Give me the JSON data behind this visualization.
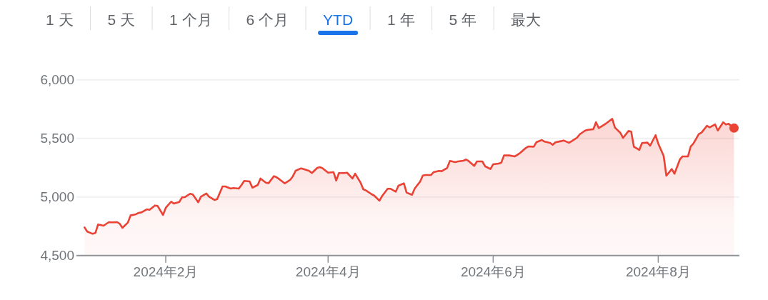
{
  "chart_data": {
    "type": "area",
    "annotations": [
      "1 天",
      "5 天",
      "1 个月",
      "6 个月",
      "YTD",
      "1 年",
      "5 年",
      "最大"
    ],
    "x": [
      "2024-01-02",
      "2024-01-03",
      "2024-01-05",
      "2024-01-06",
      "2024-01-07",
      "2024-01-09",
      "2024-01-11",
      "2024-01-12",
      "2024-01-14",
      "2024-01-15",
      "2024-01-16",
      "2024-01-18",
      "2024-01-19",
      "2024-01-21",
      "2024-01-22",
      "2024-01-23",
      "2024-01-25",
      "2024-01-26",
      "2024-01-28",
      "2024-01-29",
      "2024-01-31",
      "2024-02-01",
      "2024-02-03",
      "2024-02-04",
      "2024-02-06",
      "2024-02-07",
      "2024-02-08",
      "2024-02-10",
      "2024-02-11",
      "2024-02-13",
      "2024-02-14",
      "2024-02-16",
      "2024-02-17",
      "2024-02-19",
      "2024-02-20",
      "2024-02-22",
      "2024-02-23",
      "2024-02-25",
      "2024-02-26",
      "2024-02-28",
      "2024-02-29",
      "2024-03-01",
      "2024-03-03",
      "2024-03-04",
      "2024-03-06",
      "2024-03-07",
      "2024-03-09",
      "2024-03-10",
      "2024-03-12",
      "2024-03-13",
      "2024-03-14",
      "2024-03-16",
      "2024-03-18",
      "2024-03-19",
      "2024-03-20",
      "2024-03-22",
      "2024-03-23",
      "2024-03-25",
      "2024-03-26",
      "2024-03-28",
      "2024-03-29",
      "2024-03-30",
      "2024-04-01",
      "2024-04-03",
      "2024-04-04",
      "2024-04-05",
      "2024-04-07",
      "2024-04-08",
      "2024-04-10",
      "2024-04-11",
      "2024-04-13",
      "2024-04-14",
      "2024-04-15",
      "2024-04-17",
      "2024-04-18",
      "2024-04-20",
      "2024-04-21",
      "2024-04-23",
      "2024-04-24",
      "2024-04-26",
      "2024-04-27",
      "2024-04-29",
      "2024-04-30",
      "2024-05-02",
      "2024-05-03",
      "2024-05-05",
      "2024-05-06",
      "2024-05-07",
      "2024-05-09",
      "2024-05-10",
      "2024-05-12",
      "2024-05-13",
      "2024-05-15",
      "2024-05-16",
      "2024-05-18",
      "2024-05-19",
      "2024-05-21",
      "2024-05-22",
      "2024-05-23",
      "2024-05-25",
      "2024-05-26",
      "2024-05-28",
      "2024-05-29",
      "2024-05-31",
      "2024-06-01",
      "2024-06-03",
      "2024-06-04",
      "2024-06-05",
      "2024-06-07",
      "2024-06-09",
      "2024-06-10",
      "2024-06-11",
      "2024-06-13",
      "2024-06-14",
      "2024-06-16",
      "2024-06-17",
      "2024-06-19",
      "2024-06-20",
      "2024-06-22",
      "2024-06-23",
      "2024-06-24",
      "2024-06-26",
      "2024-06-27",
      "2024-06-29",
      "2024-06-30",
      "2024-07-02",
      "2024-07-03",
      "2024-07-05",
      "2024-07-06",
      "2024-07-08",
      "2024-07-09",
      "2024-07-10",
      "2024-07-12",
      "2024-07-13",
      "2024-07-15",
      "2024-07-16",
      "2024-07-18",
      "2024-07-19",
      "2024-07-21",
      "2024-07-22",
      "2024-07-23",
      "2024-07-25",
      "2024-07-26",
      "2024-07-28",
      "2024-07-29",
      "2024-07-31",
      "2024-08-01",
      "2024-08-03",
      "2024-08-04",
      "2024-08-06",
      "2024-08-07",
      "2024-08-09",
      "2024-08-10",
      "2024-08-12",
      "2024-08-13",
      "2024-08-14",
      "2024-08-16",
      "2024-08-17",
      "2024-08-19",
      "2024-08-20",
      "2024-08-22",
      "2024-08-23",
      "2024-08-25",
      "2024-08-26",
      "2024-08-27",
      "2024-08-29"
    ],
    "series": [
      {
        "color": "#ea4335",
        "values": [
          4740,
          4704,
          4685,
          4693,
          4765,
          4754,
          4785,
          4783,
          4785,
          4771,
          4736,
          4781,
          4842,
          4852,
          4864,
          4868,
          4894,
          4890,
          4927,
          4923,
          4846,
          4907,
          4960,
          4943,
          4957,
          4996,
          4998,
          5027,
          5021,
          4954,
          5002,
          5029,
          5002,
          4974,
          4982,
          5090,
          5090,
          5071,
          5076,
          5071,
          5102,
          5137,
          5132,
          5079,
          5102,
          5157,
          5122,
          5118,
          5177,
          5167,
          5151,
          5116,
          5146,
          5177,
          5224,
          5244,
          5238,
          5222,
          5204,
          5248,
          5254,
          5244,
          5207,
          5212,
          5140,
          5204,
          5204,
          5207,
          5157,
          5198,
          5122,
          5065,
          5055,
          5024,
          5012,
          4968,
          5009,
          5070,
          5070,
          5045,
          5096,
          5116,
          5037,
          5018,
          5071,
          5131,
          5183,
          5187,
          5187,
          5212,
          5222,
          5220,
          5248,
          5307,
          5297,
          5303,
          5309,
          5320,
          5305,
          5265,
          5303,
          5303,
          5262,
          5238,
          5279,
          5285,
          5293,
          5354,
          5354,
          5346,
          5360,
          5376,
          5417,
          5431,
          5429,
          5468,
          5486,
          5472,
          5462,
          5445,
          5466,
          5476,
          5482,
          5462,
          5476,
          5506,
          5535,
          5567,
          5573,
          5578,
          5638,
          5588,
          5616,
          5632,
          5667,
          5592,
          5547,
          5504,
          5563,
          5557,
          5429,
          5401,
          5460,
          5464,
          5437,
          5527,
          5456,
          5350,
          5181,
          5238,
          5198,
          5320,
          5346,
          5346,
          5431,
          5456,
          5537,
          5549,
          5608,
          5594,
          5620,
          5567,
          5637,
          5618,
          5624,
          5588
        ]
      },
      {
        "type": "scatter",
        "color": "#ea4335",
        "x": [
          "2024-08-29"
        ],
        "values": [
          5588
        ]
      }
    ],
    "xlim": [
      "2023-12-30",
      "2024-08-31"
    ],
    "xticks": [
      {
        "value": "2024-02-01",
        "label": "2024年2月"
      },
      {
        "value": "2024-04-01",
        "label": "2024年4月"
      },
      {
        "value": "2024-06-01",
        "label": "2024年6月"
      },
      {
        "value": "2024-08-01",
        "label": "2024年8月"
      }
    ],
    "ylim": [
      4500,
      6000
    ],
    "yticks": [
      {
        "value": 4500,
        "label": "4,500"
      },
      {
        "value": 5000,
        "label": "5,000"
      },
      {
        "value": 5500,
        "label": "5,500"
      },
      {
        "value": 6000,
        "label": "6,000"
      }
    ],
    "grid": "y"
  }
}
